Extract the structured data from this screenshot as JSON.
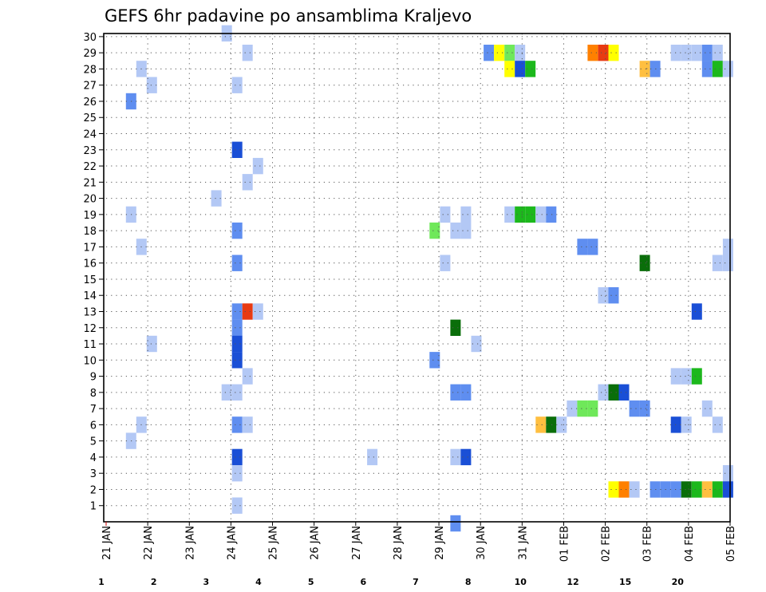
{
  "chart_data": {
    "type": "heatmap",
    "title": "GEFS 6hr padavine po ansamblima Kraljevo",
    "y_ticks": [
      "1",
      "2",
      "3",
      "4",
      "5",
      "6",
      "7",
      "8",
      "9",
      "10",
      "11",
      "12",
      "13",
      "14",
      "15",
      "16",
      "17",
      "18",
      "19",
      "20",
      "21",
      "22",
      "23",
      "24",
      "25",
      "26",
      "27",
      "28",
      "29",
      "30"
    ],
    "x_ticks": [
      "21 JAN",
      "22 JAN",
      "23 JAN",
      "24 JAN",
      "25 JAN",
      "26 JAN",
      "27 JAN",
      "28 JAN",
      "29 JAN",
      "30 JAN",
      "31 JAN",
      "01 FEB",
      "02 FEB",
      "03 FEB",
      "04 FEB",
      "05 FEB"
    ],
    "x_range_days": [
      0,
      15
    ],
    "y_range": [
      0,
      30
    ],
    "grid": true,
    "legend": {
      "placement": "bottom",
      "labels": [
        "1",
        "2",
        "3",
        "4",
        "5",
        "6",
        "7",
        "8",
        "10",
        "12",
        "15",
        "20"
      ],
      "colors": [
        "#b3c8f5",
        "#5f8ef0",
        "#1a4fd6",
        "#6fe85a",
        "#1cb81c",
        "#0a6e0a",
        "#ffff00",
        "#ffbf40",
        "#ff8000",
        "#e83a12",
        "#b00000",
        "#6e0000"
      ]
    },
    "cells": [
      {
        "x": 2.9,
        "y": 30.2,
        "c": 0
      },
      {
        "x": 3.4,
        "y": 29,
        "c": 0
      },
      {
        "x": 9.2,
        "y": 29,
        "c": 1
      },
      {
        "x": 9.45,
        "y": 29,
        "c": 6
      },
      {
        "x": 9.7,
        "y": 29,
        "c": 3
      },
      {
        "x": 9.95,
        "y": 29,
        "c": 0
      },
      {
        "x": 11.7,
        "y": 29,
        "c": 8
      },
      {
        "x": 11.95,
        "y": 29,
        "c": 9
      },
      {
        "x": 12.2,
        "y": 29,
        "c": 6
      },
      {
        "x": 13.7,
        "y": 29,
        "c": 0
      },
      {
        "x": 13.95,
        "y": 29,
        "c": 0
      },
      {
        "x": 14.2,
        "y": 29,
        "c": 0
      },
      {
        "x": 14.45,
        "y": 29,
        "c": 1
      },
      {
        "x": 14.7,
        "y": 29,
        "c": 0
      },
      {
        "x": 0.85,
        "y": 28,
        "c": 0
      },
      {
        "x": 9.7,
        "y": 28,
        "c": 6
      },
      {
        "x": 9.95,
        "y": 28,
        "c": 2
      },
      {
        "x": 10.2,
        "y": 28,
        "c": 4
      },
      {
        "x": 12.95,
        "y": 28,
        "c": 7
      },
      {
        "x": 13.2,
        "y": 28,
        "c": 1
      },
      {
        "x": 14.45,
        "y": 28,
        "c": 1
      },
      {
        "x": 14.7,
        "y": 28,
        "c": 4
      },
      {
        "x": 14.95,
        "y": 28,
        "c": 0
      },
      {
        "x": 1.1,
        "y": 27,
        "c": 0
      },
      {
        "x": 3.15,
        "y": 27,
        "c": 0
      },
      {
        "x": 0.6,
        "y": 26,
        "c": 1
      },
      {
        "x": 3.15,
        "y": 23,
        "c": 2
      },
      {
        "x": 3.65,
        "y": 22,
        "c": 0
      },
      {
        "x": 3.4,
        "y": 21,
        "c": 0
      },
      {
        "x": 2.65,
        "y": 20,
        "c": 0
      },
      {
        "x": 0.6,
        "y": 19,
        "c": 0
      },
      {
        "x": 8.15,
        "y": 19,
        "c": 0
      },
      {
        "x": 8.65,
        "y": 19,
        "c": 0
      },
      {
        "x": 9.7,
        "y": 19,
        "c": 0
      },
      {
        "x": 9.95,
        "y": 19,
        "c": 4
      },
      {
        "x": 10.2,
        "y": 19,
        "c": 4
      },
      {
        "x": 10.45,
        "y": 19,
        "c": 0
      },
      {
        "x": 10.7,
        "y": 19,
        "c": 1
      },
      {
        "x": 3.15,
        "y": 18,
        "c": 1
      },
      {
        "x": 7.9,
        "y": 18,
        "c": 3
      },
      {
        "x": 8.4,
        "y": 18,
        "c": 0
      },
      {
        "x": 8.65,
        "y": 18,
        "c": 0
      },
      {
        "x": 0.85,
        "y": 17,
        "c": 0
      },
      {
        "x": 11.45,
        "y": 17,
        "c": 1
      },
      {
        "x": 11.7,
        "y": 17,
        "c": 1
      },
      {
        "x": 14.95,
        "y": 17,
        "c": 0
      },
      {
        "x": 3.15,
        "y": 16,
        "c": 1
      },
      {
        "x": 8.15,
        "y": 16,
        "c": 0
      },
      {
        "x": 12.95,
        "y": 16,
        "c": 5
      },
      {
        "x": 14.7,
        "y": 16,
        "c": 0
      },
      {
        "x": 14.95,
        "y": 16,
        "c": 0
      },
      {
        "x": 11.95,
        "y": 14,
        "c": 0
      },
      {
        "x": 12.2,
        "y": 14,
        "c": 1
      },
      {
        "x": 3.15,
        "y": 13,
        "c": 1
      },
      {
        "x": 3.4,
        "y": 13,
        "c": 9
      },
      {
        "x": 3.65,
        "y": 13,
        "c": 0
      },
      {
        "x": 14.2,
        "y": 13,
        "c": 2
      },
      {
        "x": 3.15,
        "y": 12,
        "c": 1
      },
      {
        "x": 8.4,
        "y": 12,
        "c": 5
      },
      {
        "x": 1.1,
        "y": 11,
        "c": 0
      },
      {
        "x": 3.15,
        "y": 11,
        "c": 2
      },
      {
        "x": 8.9,
        "y": 11,
        "c": 0
      },
      {
        "x": 3.15,
        "y": 10,
        "c": 2
      },
      {
        "x": 7.9,
        "y": 10,
        "c": 1
      },
      {
        "x": 3.4,
        "y": 9,
        "c": 0
      },
      {
        "x": 13.7,
        "y": 9,
        "c": 0
      },
      {
        "x": 13.95,
        "y": 9,
        "c": 0
      },
      {
        "x": 14.2,
        "y": 9,
        "c": 4
      },
      {
        "x": 2.9,
        "y": 8,
        "c": 0
      },
      {
        "x": 3.15,
        "y": 8,
        "c": 0
      },
      {
        "x": 8.4,
        "y": 8,
        "c": 1
      },
      {
        "x": 8.65,
        "y": 8,
        "c": 1
      },
      {
        "x": 11.95,
        "y": 8,
        "c": 0
      },
      {
        "x": 12.2,
        "y": 8,
        "c": 5
      },
      {
        "x": 12.45,
        "y": 8,
        "c": 2
      },
      {
        "x": 11.2,
        "y": 7,
        "c": 0
      },
      {
        "x": 11.45,
        "y": 7,
        "c": 3
      },
      {
        "x": 11.7,
        "y": 7,
        "c": 3
      },
      {
        "x": 12.7,
        "y": 7,
        "c": 1
      },
      {
        "x": 12.95,
        "y": 7,
        "c": 1
      },
      {
        "x": 14.45,
        "y": 7,
        "c": 0
      },
      {
        "x": 0.85,
        "y": 6,
        "c": 0
      },
      {
        "x": 3.15,
        "y": 6,
        "c": 1
      },
      {
        "x": 3.4,
        "y": 6,
        "c": 0
      },
      {
        "x": 10.45,
        "y": 6,
        "c": 7
      },
      {
        "x": 10.7,
        "y": 6,
        "c": 5
      },
      {
        "x": 10.95,
        "y": 6,
        "c": 0
      },
      {
        "x": 13.7,
        "y": 6,
        "c": 2
      },
      {
        "x": 13.95,
        "y": 6,
        "c": 0
      },
      {
        "x": 14.7,
        "y": 6,
        "c": 0
      },
      {
        "x": 0.6,
        "y": 5,
        "c": 0
      },
      {
        "x": 3.15,
        "y": 4,
        "c": 2
      },
      {
        "x": 6.4,
        "y": 4,
        "c": 0
      },
      {
        "x": 8.4,
        "y": 4,
        "c": 0
      },
      {
        "x": 8.65,
        "y": 4,
        "c": 2
      },
      {
        "x": 3.15,
        "y": 3,
        "c": 0
      },
      {
        "x": 14.95,
        "y": 3,
        "c": 0
      },
      {
        "x": 12.2,
        "y": 2,
        "c": 6
      },
      {
        "x": 12.45,
        "y": 2,
        "c": 8
      },
      {
        "x": 12.7,
        "y": 2,
        "c": 0
      },
      {
        "x": 13.2,
        "y": 2,
        "c": 1
      },
      {
        "x": 13.45,
        "y": 2,
        "c": 1
      },
      {
        "x": 13.7,
        "y": 2,
        "c": 1
      },
      {
        "x": 13.95,
        "y": 2,
        "c": 5
      },
      {
        "x": 14.2,
        "y": 2,
        "c": 4
      },
      {
        "x": 14.45,
        "y": 2,
        "c": 7
      },
      {
        "x": 14.7,
        "y": 2,
        "c": 4
      },
      {
        "x": 14.95,
        "y": 2,
        "c": 2
      },
      {
        "x": 3.15,
        "y": 1,
        "c": 0
      },
      {
        "x": 8.4,
        "y": -0.1,
        "c": 1
      }
    ]
  }
}
